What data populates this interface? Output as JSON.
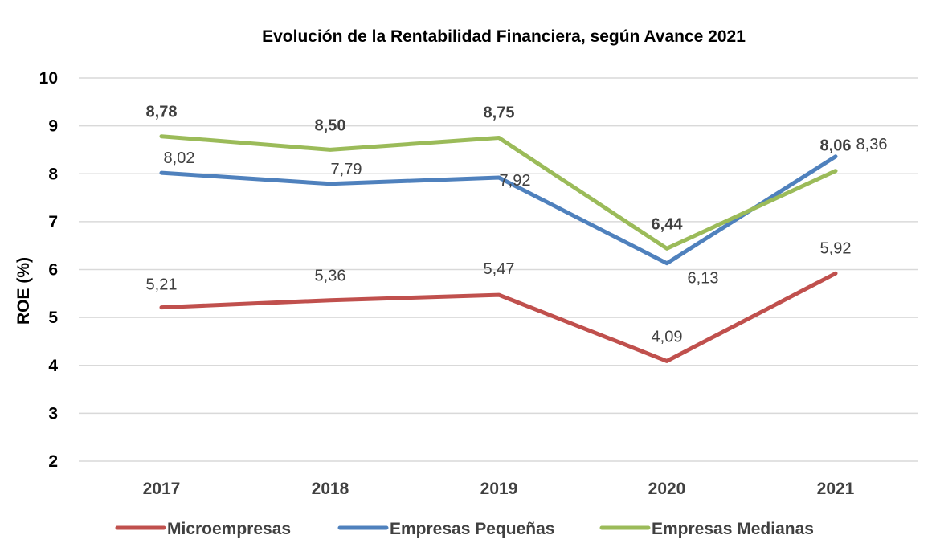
{
  "chart_data": {
    "type": "line",
    "title": "Evolución de la Rentabilidad Financiera, según Avance 2021",
    "xlabel": "",
    "ylabel": "ROE (%)",
    "ylim": [
      2,
      10
    ],
    "yticks": [
      "2",
      "3",
      "4",
      "5",
      "6",
      "7",
      "8",
      "9",
      "10"
    ],
    "categories": [
      "2017",
      "2018",
      "2019",
      "2020",
      "2021"
    ],
    "grid": true,
    "legend_position": "bottom",
    "series": [
      {
        "name": "Microempresas",
        "color": "#c0504d",
        "values": [
          5.21,
          5.36,
          5.47,
          4.09,
          5.92
        ],
        "labels": [
          "5,21",
          "5,36",
          "5,47",
          "4,09",
          "5,92"
        ],
        "bold_labels": false
      },
      {
        "name": "Empresas Pequeñas",
        "color": "#4f81bd",
        "values": [
          8.02,
          7.79,
          7.92,
          6.13,
          8.36
        ],
        "labels": [
          "8,02",
          "7,79",
          "7,92",
          "6,13",
          "8,36"
        ],
        "bold_labels": false
      },
      {
        "name": "Empresas Medianas",
        "color": "#9bbb59",
        "values": [
          8.78,
          8.5,
          8.75,
          6.44,
          8.06
        ],
        "labels": [
          "8,78",
          "8,50",
          "8,75",
          "6,44",
          "8,06"
        ],
        "bold_labels": true
      }
    ]
  }
}
